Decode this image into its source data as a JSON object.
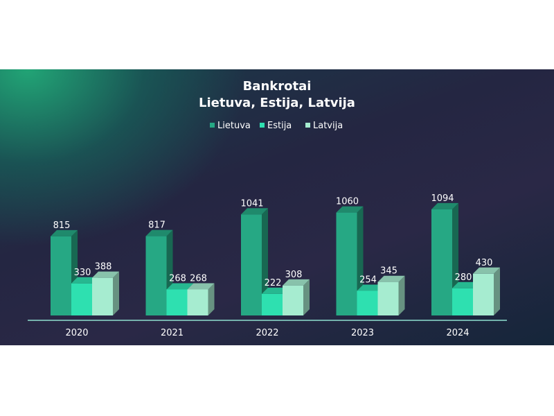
{
  "chart_data": {
    "type": "bar",
    "title": "Bankrotai",
    "subtitle": "Lietuva, Estija, Latvija",
    "categories": [
      "2020",
      "2021",
      "2022",
      "2023",
      "2024"
    ],
    "series": [
      {
        "name": "Lietuva",
        "values": [
          815,
          817,
          1041,
          1060,
          1094
        ],
        "color": "#26a884"
      },
      {
        "name": "Estija",
        "values": [
          330,
          268,
          222,
          254,
          280
        ],
        "color": "#2ee0b0"
      },
      {
        "name": "Latvija",
        "values": [
          388,
          268,
          308,
          345,
          430
        ],
        "color": "#a6ecd0"
      }
    ],
    "legend_position": "top-center",
    "data_labels": true,
    "grid": false,
    "ylim": [
      0,
      1100
    ]
  }
}
